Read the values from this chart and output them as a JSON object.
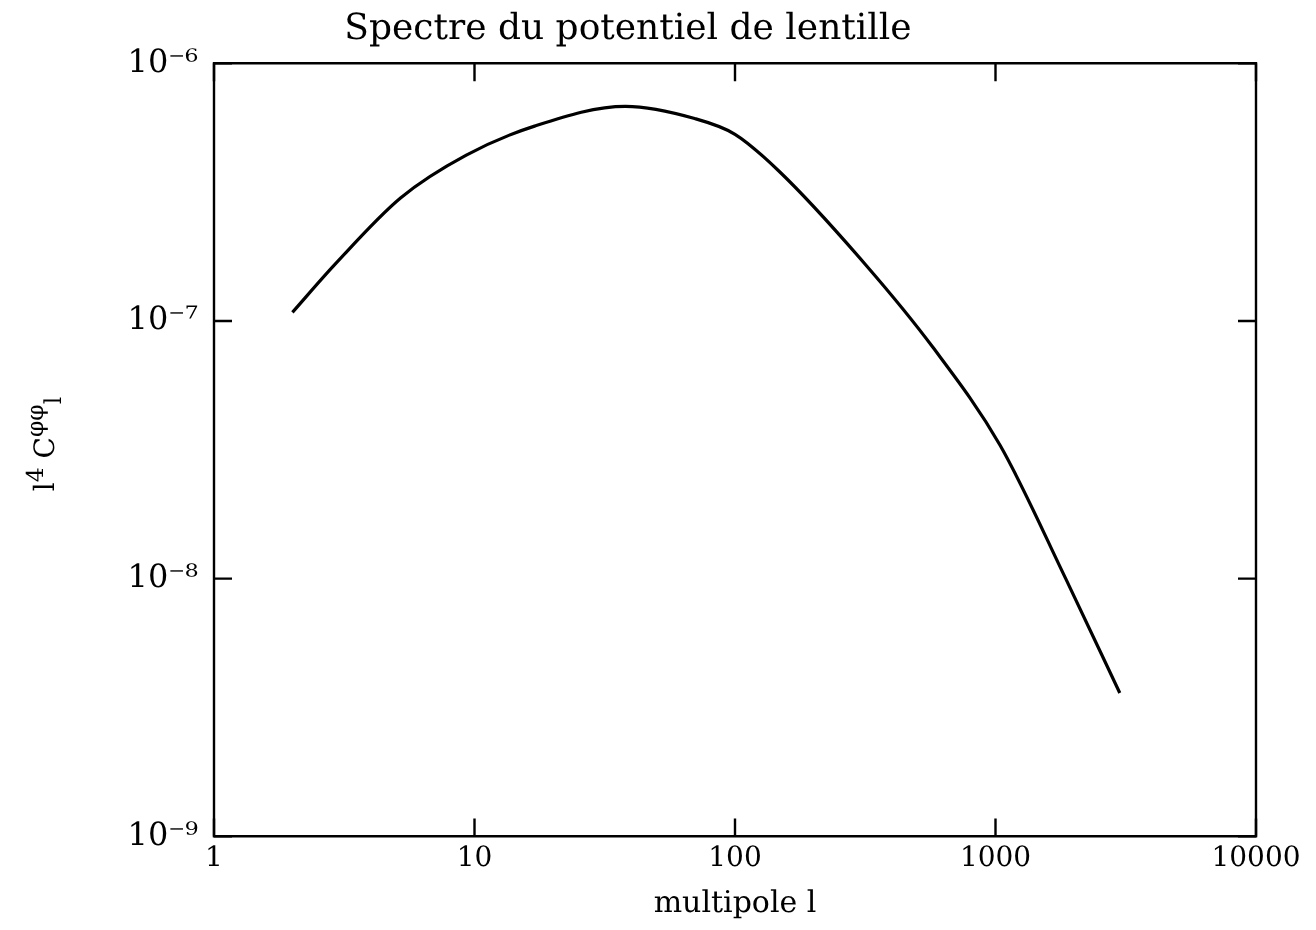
{
  "chart_data": {
    "type": "line",
    "title": "Spectre du potentiel de lentille",
    "xlabel": "multipole l",
    "ylabel": "l$^{4}$ C$^{φφ}$$_{l}$",
    "x": [
      2,
      2.9,
      5.2,
      9.3,
      17,
      38,
      70,
      100,
      148,
      316,
      575,
      1040,
      1860,
      3000
    ],
    "series": [
      {
        "color": "#000000",
        "values": [
          1.08e-07,
          1.65e-07,
          3e-07,
          4.4e-07,
          5.7e-07,
          6.8e-07,
          6.1e-07,
          5.3e-07,
          3.8e-07,
          1.66e-07,
          7.9e-08,
          3.3e-08,
          1e-08,
          3.6e-09
        ]
      }
    ],
    "log": "xy",
    "xlim": [
      1,
      10000
    ],
    "xticks": [
      1,
      10,
      100,
      1000,
      10000
    ],
    "ylim": [
      1e-09,
      1e-06
    ],
    "yticks": [
      {
        "value": 1e-09,
        "label": "10⁻⁹"
      },
      {
        "value": 1e-08,
        "label": "10⁻⁸"
      },
      {
        "value": 1e-07,
        "label": "10⁻⁷"
      },
      {
        "value": 1e-06,
        "label": "10⁻⁶"
      }
    ],
    "grid": false,
    "legend": false,
    "marker": "none",
    "line_style": "solid"
  }
}
